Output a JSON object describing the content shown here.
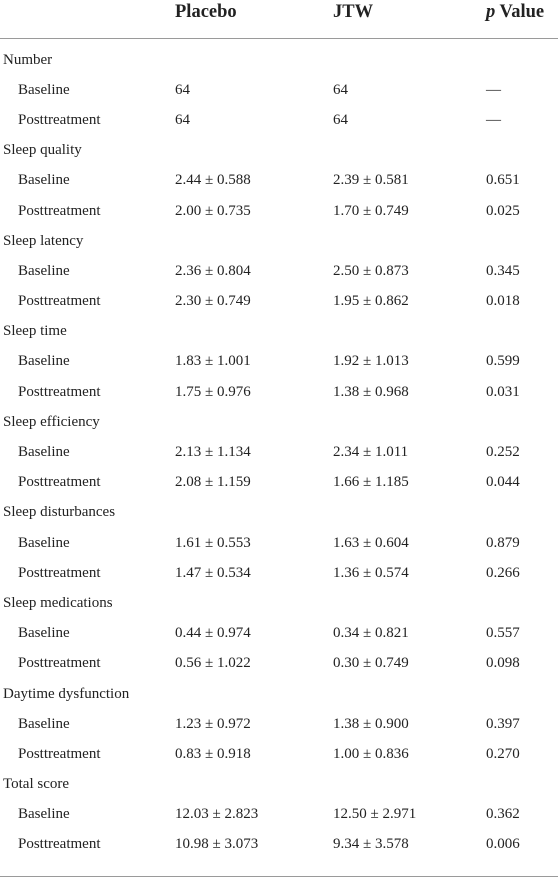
{
  "header": {
    "col0": "",
    "col1": "Placebo",
    "col2": "JTW",
    "col3_italic": "p",
    "col3_rest": " Value"
  },
  "rows": [
    {
      "type": "group",
      "label": "Number"
    },
    {
      "type": "sub",
      "label": "Baseline",
      "placebo": "64",
      "jtw": "64",
      "p": "—"
    },
    {
      "type": "sub",
      "label": "Posttreatment",
      "placebo": "64",
      "jtw": "64",
      "p": "—"
    },
    {
      "type": "group",
      "label": "Sleep quality"
    },
    {
      "type": "sub",
      "label": "Baseline",
      "placebo": "2.44 ± 0.588",
      "jtw": "2.39 ± 0.581",
      "p": "0.651"
    },
    {
      "type": "sub",
      "label": "Posttreatment",
      "placebo": "2.00 ± 0.735",
      "jtw": "1.70 ± 0.749",
      "p": "0.025"
    },
    {
      "type": "group",
      "label": "Sleep latency"
    },
    {
      "type": "sub",
      "label": "Baseline",
      "placebo": "2.36 ± 0.804",
      "jtw": "2.50 ± 0.873",
      "p": "0.345"
    },
    {
      "type": "sub",
      "label": "Posttreatment",
      "placebo": "2.30 ± 0.749",
      "jtw": "1.95 ± 0.862",
      "p": "0.018"
    },
    {
      "type": "group",
      "label": "Sleep time"
    },
    {
      "type": "sub",
      "label": "Baseline",
      "placebo": "1.83 ± 1.001",
      "jtw": "1.92 ± 1.013",
      "p": "0.599"
    },
    {
      "type": "sub",
      "label": "Posttreatment",
      "placebo": "1.75 ± 0.976",
      "jtw": "1.38 ± 0.968",
      "p": "0.031"
    },
    {
      "type": "group",
      "label": "Sleep efficiency"
    },
    {
      "type": "sub",
      "label": "Baseline",
      "placebo": "2.13 ± 1.134",
      "jtw": "2.34 ± 1.011",
      "p": "0.252"
    },
    {
      "type": "sub",
      "label": "Posttreatment",
      "placebo": "2.08 ± 1.159",
      "jtw": "1.66 ± 1.185",
      "p": "0.044"
    },
    {
      "type": "group",
      "label": "Sleep disturbances"
    },
    {
      "type": "sub",
      "label": "Baseline",
      "placebo": "1.61 ± 0.553",
      "jtw": "1.63 ± 0.604",
      "p": "0.879"
    },
    {
      "type": "sub",
      "label": "Posttreatment",
      "placebo": "1.47 ± 0.534",
      "jtw": "1.36 ± 0.574",
      "p": "0.266"
    },
    {
      "type": "group",
      "label": "Sleep medications"
    },
    {
      "type": "sub",
      "label": "Baseline",
      "placebo": "0.44 ± 0.974",
      "jtw": "0.34 ± 0.821",
      "p": "0.557"
    },
    {
      "type": "sub",
      "label": "Posttreatment",
      "placebo": "0.56 ± 1.022",
      "jtw": "0.30 ± 0.749",
      "p": "0.098"
    },
    {
      "type": "group",
      "label": "Daytime dysfunction"
    },
    {
      "type": "sub",
      "label": "Baseline",
      "placebo": "1.23 ± 0.972",
      "jtw": "1.38 ± 0.900",
      "p": "0.397"
    },
    {
      "type": "sub",
      "label": "Posttreatment",
      "placebo": "0.83 ± 0.918",
      "jtw": "1.00 ± 0.836",
      "p": "0.270"
    },
    {
      "type": "group",
      "label": "Total score"
    },
    {
      "type": "sub",
      "label": "Baseline",
      "placebo": "12.03 ± 2.823",
      "jtw": "12.50 ± 2.971",
      "p": "0.362"
    },
    {
      "type": "sub",
      "label": "Posttreatment",
      "placebo": "10.98 ± 3.073",
      "jtw": "9.34 ± 3.578",
      "p": "0.006"
    }
  ]
}
